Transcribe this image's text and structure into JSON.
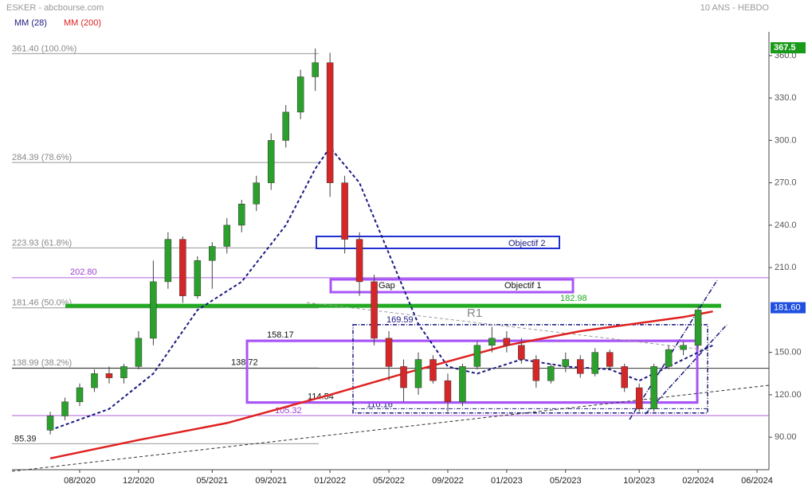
{
  "chart_data": {
    "type": "candlestick",
    "title": "ESKER - abcbourse.com",
    "subtitle": "10 ANS - HEBDO",
    "x": [
      "2020-06",
      "2020-07",
      "2020-08",
      "2020-09",
      "2020-10",
      "2020-11",
      "2020-12",
      "2021-01",
      "2021-02",
      "2021-03",
      "2021-04",
      "2021-05",
      "2021-06",
      "2021-07",
      "2021-08",
      "2021-09",
      "2021-10",
      "2021-11",
      "2021-12",
      "2022-01",
      "2022-02",
      "2022-03",
      "2022-04",
      "2022-05",
      "2022-06",
      "2022-07",
      "2022-08",
      "2022-09",
      "2022-10",
      "2022-11",
      "2022-12",
      "2023-01",
      "2023-02",
      "2023-03",
      "2023-04",
      "2023-05",
      "2023-06",
      "2023-07",
      "2023-08",
      "2023-09",
      "2023-10",
      "2023-11",
      "2023-12",
      "2024-01",
      "2024-02"
    ],
    "open": [
      95,
      105,
      115,
      125,
      135,
      132,
      140,
      160,
      200,
      230,
      190,
      215,
      225,
      240,
      255,
      270,
      300,
      320,
      345,
      355,
      270,
      230,
      200,
      160,
      140,
      125,
      145,
      130,
      115,
      140,
      155,
      160,
      155,
      145,
      130,
      140,
      145,
      135,
      150,
      140,
      125,
      110,
      140,
      152,
      155
    ],
    "close": [
      105,
      115,
      125,
      135,
      132,
      140,
      160,
      200,
      230,
      190,
      215,
      225,
      240,
      255,
      270,
      300,
      320,
      345,
      355,
      270,
      230,
      200,
      160,
      140,
      125,
      145,
      130,
      115,
      140,
      155,
      160,
      155,
      145,
      130,
      140,
      145,
      135,
      150,
      140,
      125,
      110,
      140,
      152,
      155,
      180
    ],
    "high": [
      108,
      118,
      128,
      138,
      140,
      142,
      165,
      215,
      235,
      232,
      218,
      228,
      245,
      258,
      275,
      305,
      325,
      350,
      365,
      362,
      275,
      235,
      205,
      165,
      145,
      150,
      148,
      135,
      142,
      158,
      168,
      165,
      160,
      148,
      142,
      150,
      148,
      153,
      152,
      142,
      128,
      142,
      155,
      158,
      183
    ],
    "low": [
      92,
      102,
      112,
      122,
      128,
      128,
      138,
      155,
      195,
      185,
      188,
      195,
      220,
      235,
      250,
      265,
      295,
      315,
      335,
      260,
      220,
      190,
      155,
      130,
      115,
      120,
      128,
      108,
      112,
      138,
      150,
      150,
      142,
      125,
      128,
      136,
      132,
      133,
      138,
      122,
      108,
      108,
      138,
      148,
      152
    ],
    "series": [
      {
        "name": "MM (28)",
        "color": "#1a1a80",
        "x": [
          "2020-06",
          "2020-10",
          "2021-01",
          "2021-04",
          "2021-07",
          "2021-10",
          "2021-12",
          "2022-01",
          "2022-03",
          "2022-05",
          "2022-07",
          "2022-09",
          "2022-11",
          "2023-02",
          "2023-05",
          "2023-08",
          "2023-10",
          "2024-01",
          "2024-03"
        ],
        "values": [
          95,
          110,
          135,
          180,
          200,
          240,
          280,
          295,
          270,
          220,
          170,
          140,
          135,
          145,
          140,
          138,
          130,
          145,
          155
        ]
      },
      {
        "name": "MM (200)",
        "color": "#e02020",
        "x": [
          "2020-06",
          "2020-12",
          "2021-06",
          "2022-01",
          "2022-06",
          "2023-01",
          "2023-06",
          "2024-01",
          "2024-03"
        ],
        "values": [
          75,
          88,
          100,
          120,
          135,
          155,
          165,
          175,
          179
        ]
      }
    ],
    "levels": [
      {
        "value": 361.4,
        "label": "361.40  (100.0%)"
      },
      {
        "value": 284.39,
        "label": "284.39  (78.6%)"
      },
      {
        "value": 223.93,
        "label": "223.93  (61.8%)"
      },
      {
        "value": 181.46,
        "label": "181.46  (50.0%)"
      },
      {
        "value": 138.99,
        "label": "138.99  (38.2%)"
      },
      {
        "value": 85.39,
        "label": "85.39"
      },
      {
        "value": 202.8,
        "label": "202.80"
      },
      {
        "value": 182.98,
        "label": "182.98"
      },
      {
        "value": 169.59,
        "label": "169.59"
      },
      {
        "value": 158.17,
        "label": "158.17"
      },
      {
        "value": 138.72,
        "label": "138.72"
      },
      {
        "value": 114.54,
        "label": "114.54"
      },
      {
        "value": 110.16,
        "label": "110.16"
      },
      {
        "value": 105.32,
        "label": "105.32"
      }
    ],
    "annotations": [
      "Objectif 2",
      "Gap",
      "Objectif 1",
      "R1"
    ],
    "last_high_label": "367.5",
    "last_price": {
      "value": 181.6,
      "label": "181.60"
    },
    "ylim": [
      67,
      374
    ],
    "yticks": [
      {
        "value": 90,
        "label": "90.00"
      },
      {
        "value": 120,
        "label": "120.00"
      },
      {
        "value": 150,
        "label": "150.00"
      },
      {
        "value": 210,
        "label": "210.0"
      },
      {
        "value": 240,
        "label": "240.0"
      },
      {
        "value": 270,
        "label": "270.0"
      },
      {
        "value": 300,
        "label": "300.0"
      },
      {
        "value": 330,
        "label": "330.0"
      },
      {
        "value": 360,
        "label": "360.0"
      }
    ],
    "xticks": [
      "08/2020",
      "12/2020",
      "05/2021",
      "09/2021",
      "01/2022",
      "05/2022",
      "09/2022",
      "01/2023",
      "05/2023",
      "10/2023",
      "02/2024",
      "06/2024"
    ]
  }
}
